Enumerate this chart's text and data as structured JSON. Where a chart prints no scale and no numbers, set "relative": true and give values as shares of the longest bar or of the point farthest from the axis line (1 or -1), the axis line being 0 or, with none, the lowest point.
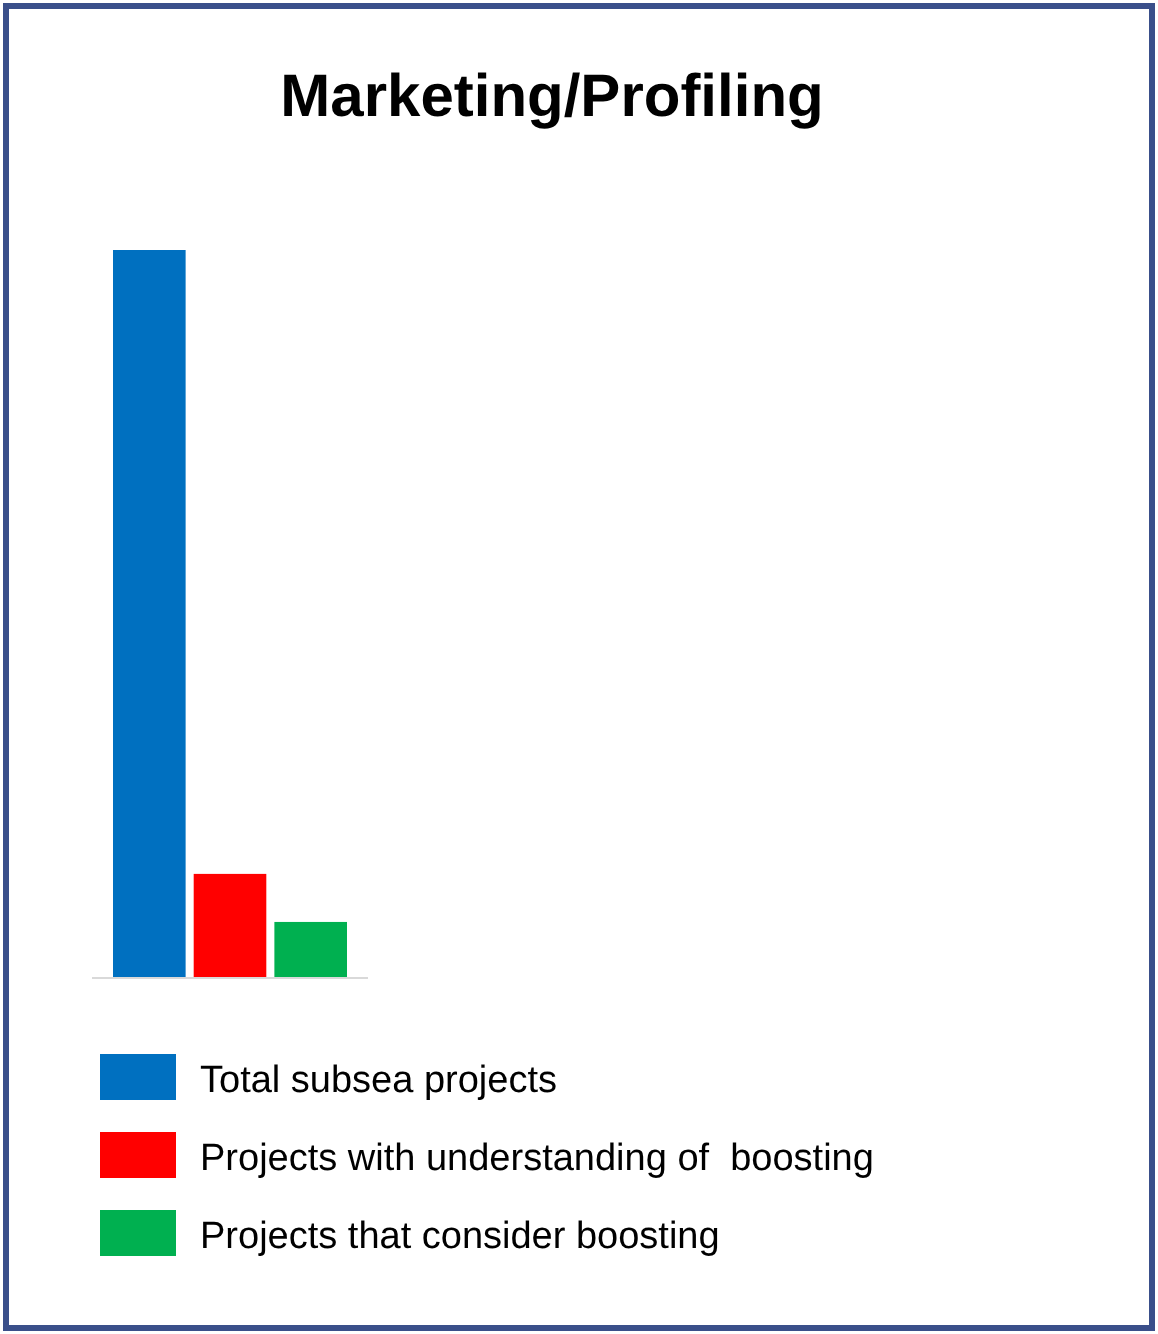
{
  "chart_data": {
    "type": "bar",
    "title": "Marketing/Profiling",
    "relative": true,
    "categories": [
      null
    ],
    "legend": "bottom",
    "series": [
      {
        "name": "Total subsea projects",
        "color": "#0070c0",
        "values": [
          1
        ]
      },
      {
        "name": "Projects with understanding of  boosting",
        "color": "#ff0000",
        "values": [
          0.143
        ]
      },
      {
        "name": "Projects that consider boosting",
        "color": "#00b050",
        "values": [
          0.077
        ]
      }
    ]
  }
}
